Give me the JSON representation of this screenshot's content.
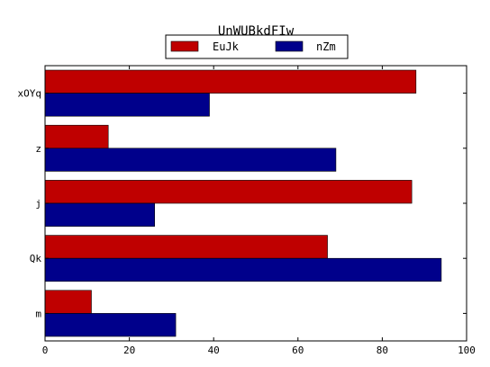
{
  "chart_data": {
    "type": "bar",
    "orientation": "horizontal",
    "title": "UnWUBkdFIw",
    "xlabel": "",
    "ylabel": "",
    "categories": [
      "xOYq",
      "z",
      "j",
      "Qk",
      "m"
    ],
    "series": [
      {
        "name": "EuJk",
        "color": "#bf0000",
        "values": [
          88,
          15,
          87,
          67,
          11
        ]
      },
      {
        "name": "nZm",
        "color": "#00008b",
        "values": [
          39,
          69,
          26,
          94,
          31
        ]
      }
    ],
    "xlim": [
      0,
      100
    ],
    "x_ticks": [
      "0",
      "20",
      "40",
      "60",
      "80",
      "100"
    ],
    "grid": false,
    "legend_position": "top-center"
  }
}
